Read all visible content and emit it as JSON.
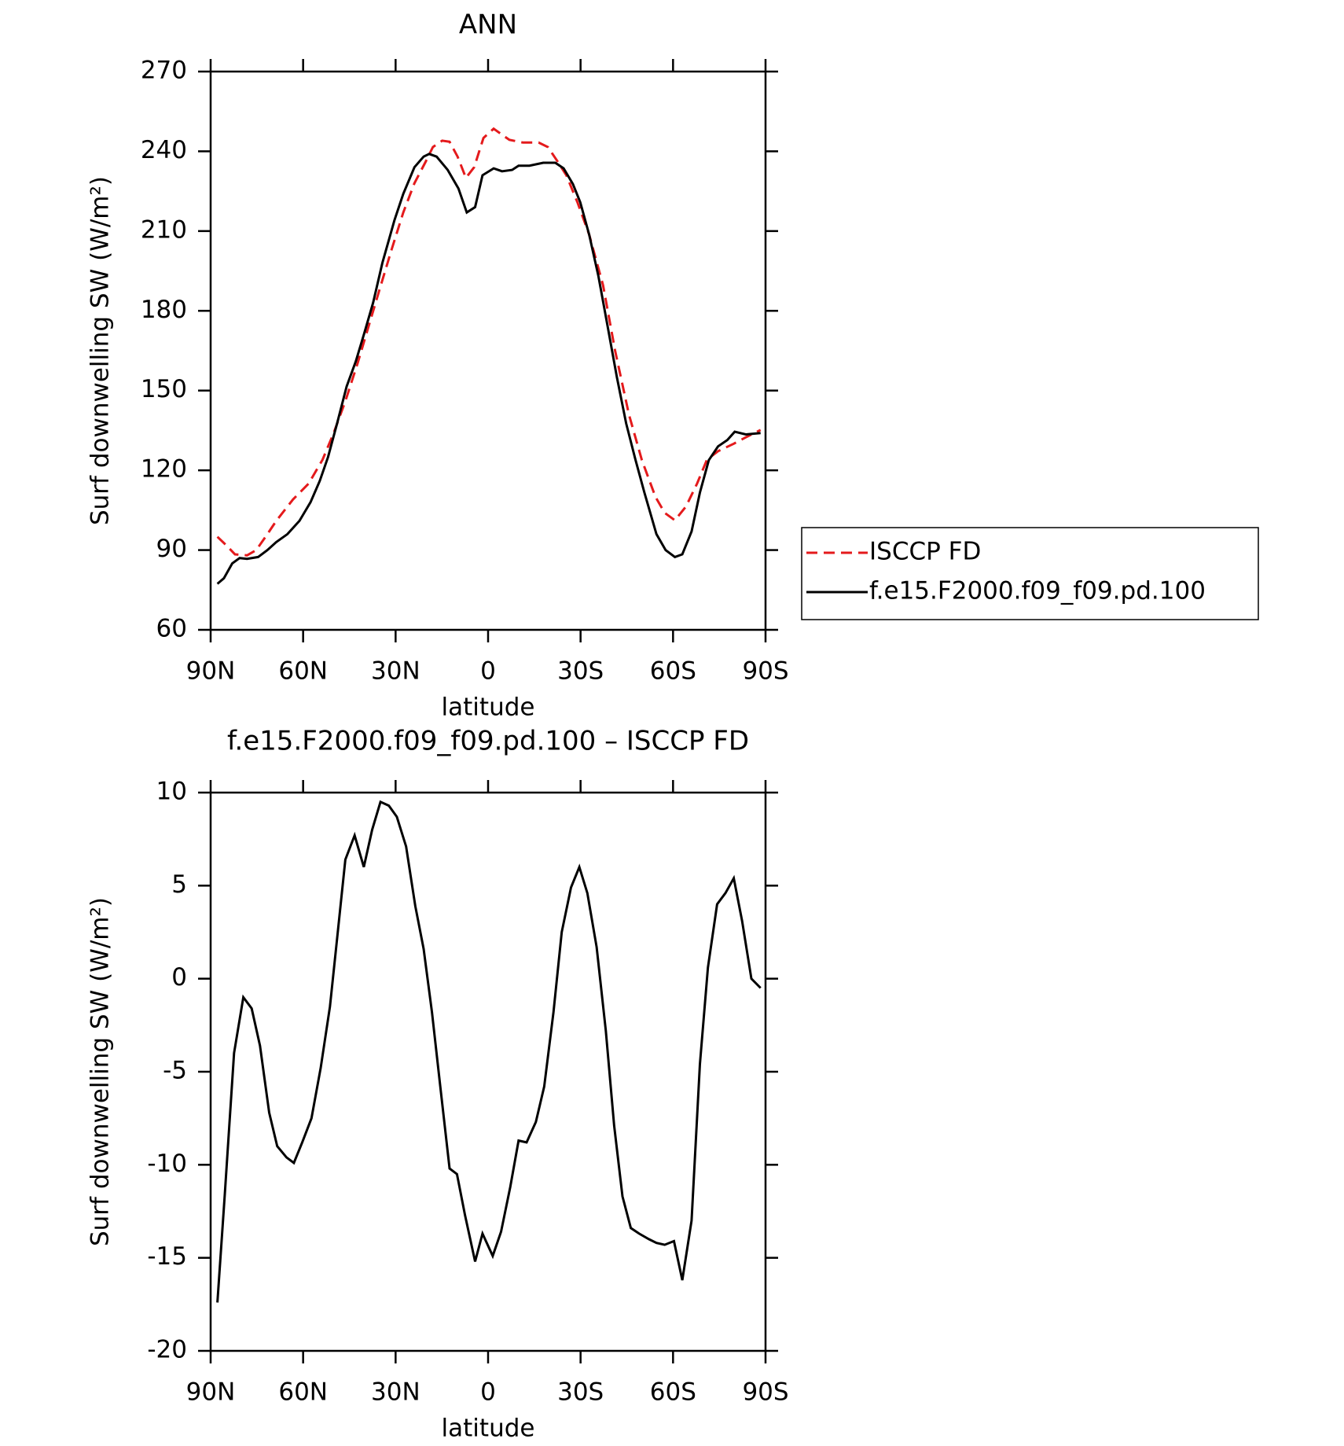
{
  "chart_data": [
    {
      "type": "line",
      "title": "ANN",
      "xlabel": "latitude",
      "ylabel": "Surf downwelling SW (W/m²)",
      "xlim": [
        90,
        -90
      ],
      "xticks": [
        {
          "value": 90,
          "label": "90N"
        },
        {
          "value": 60,
          "label": "60N"
        },
        {
          "value": 30,
          "label": "30N"
        },
        0,
        {
          "value": -30,
          "label": "30S"
        },
        {
          "value": -60,
          "label": "60S"
        },
        {
          "value": -90,
          "label": "90S"
        }
      ],
      "ylim": [
        60,
        270
      ],
      "yticks": [
        60,
        90,
        120,
        150,
        180,
        210,
        240,
        270
      ],
      "legend": "right",
      "series": [
        {
          "name": "ISCCP FD",
          "color": "#e41a1c",
          "dash": true,
          "x": [
            87.8,
            85.1,
            82.1,
            78.2,
            75.2,
            71.6,
            68.7,
            63.3,
            58.2,
            53.7,
            50.1,
            46.3,
            42.4,
            38.8,
            35.2,
            31.3,
            27.5,
            23.9,
            20.3,
            17.9,
            14.9,
            12.5,
            9.9,
            7.2,
            4.5,
            1.5,
            -1.8,
            -6.9,
            -11.3,
            -16.4,
            -19.4,
            -22.4,
            -25.4,
            -29,
            -32.8,
            -37.3,
            -41.2,
            -45.7,
            -49.9,
            -54.3,
            -57.3,
            -60.6,
            -64.2,
            -67.8,
            -71,
            -74.6,
            -79.7,
            -83.6,
            -88.4
          ],
          "values": [
            95,
            92,
            88.4,
            88,
            90,
            96,
            101,
            109,
            115,
            124,
            134,
            146,
            160,
            174,
            188,
            203,
            217,
            228,
            236,
            241.6,
            244,
            243.6,
            238,
            230,
            234,
            245,
            248.5,
            244.3,
            243.3,
            243.3,
            241.6,
            236.4,
            231,
            220.8,
            208.7,
            189.6,
            165,
            141,
            123.8,
            110,
            104,
            101.2,
            106.4,
            115,
            124,
            127.2,
            130,
            132.4,
            135.2
          ]
        },
        {
          "name": "f.e15.F2000.f09_f09.pd.100",
          "color": "#000000",
          "dash": false,
          "x": [
            87.8,
            85.7,
            83,
            80.6,
            78.2,
            74.6,
            71.6,
            68.7,
            65.1,
            61.2,
            57.6,
            54.6,
            51.9,
            48.9,
            45.9,
            42.9,
            40.3,
            37.3,
            34.3,
            30.4,
            27.5,
            23.9,
            20.9,
            19.1,
            16.7,
            13.1,
            9.6,
            6.9,
            4.2,
            1.8,
            -1.8,
            -4.5,
            -7.8,
            -9.9,
            -13.4,
            -17.9,
            -21.8,
            -24.5,
            -27.5,
            -29.9,
            -32.8,
            -35.8,
            -38.8,
            -41.8,
            -44.8,
            -47.8,
            -50.7,
            -54.6,
            -57.6,
            -60.6,
            -63,
            -66,
            -68.7,
            -71.6,
            -74.6,
            -77.6,
            -80,
            -83.6,
            -88.4
          ],
          "values": [
            77.3,
            79.4,
            85,
            87,
            86.7,
            87.4,
            90,
            93,
            96,
            101,
            108,
            116,
            125,
            138,
            151.5,
            161,
            171,
            183,
            198,
            214,
            224,
            234,
            238,
            239,
            238,
            233,
            226,
            217,
            219,
            231,
            233.6,
            232.5,
            233,
            234.6,
            234.6,
            235.7,
            235.7,
            233.6,
            227.7,
            220.8,
            208.7,
            193,
            174,
            155,
            137.6,
            124,
            111.6,
            96,
            90,
            87.4,
            88.4,
            97,
            111.6,
            123.8,
            129,
            131.4,
            134.5,
            133.5,
            134
          ]
        }
      ]
    },
    {
      "type": "line",
      "title": "f.e15.F2000.f09_f09.pd.100 – ISCCP FD",
      "xlabel": "latitude",
      "ylabel": "Surf downwelling SW (W/m²)",
      "xlim": [
        90,
        -90
      ],
      "xticks": [
        {
          "value": 90,
          "label": "90N"
        },
        {
          "value": 60,
          "label": "60N"
        },
        {
          "value": 30,
          "label": "30N"
        },
        0,
        {
          "value": -30,
          "label": "30S"
        },
        {
          "value": -60,
          "label": "60S"
        },
        {
          "value": -90,
          "label": "90S"
        }
      ],
      "ylim": [
        -20,
        10
      ],
      "yticks": [
        -20,
        -15,
        -10,
        -5,
        0,
        5,
        10
      ],
      "series": [
        {
          "color": "#000000",
          "dash": false,
          "x": [
            87.8,
            85.4,
            82.4,
            79.4,
            76.7,
            74,
            71,
            68.4,
            65.4,
            63,
            60.3,
            57.3,
            54.3,
            51.3,
            48.7,
            46.3,
            43.3,
            40.3,
            37.6,
            34.9,
            32.2,
            29.6,
            26.6,
            23.6,
            20.9,
            18.2,
            15.5,
            12.5,
            10.1,
            7.5,
            4.2,
            1.8,
            -1.5,
            -4.2,
            -7.2,
            -9.9,
            -12.5,
            -15.5,
            -18.2,
            -21.2,
            -23.9,
            -26.9,
            -29.6,
            -32.2,
            -35.2,
            -38.2,
            -40.9,
            -43.6,
            -46.3,
            -49,
            -52.2,
            -54.6,
            -57.3,
            -60.3,
            -63,
            -66,
            -68.7,
            -71.3,
            -74.3,
            -77,
            -79.7,
            -82.4,
            -85.4,
            -88.4
          ],
          "values": [
            -17.4,
            -11.6,
            -4,
            -1,
            -1.6,
            -3.6,
            -7.2,
            -9,
            -9.6,
            -9.9,
            -8.8,
            -7.5,
            -4.8,
            -1.5,
            2.6,
            6.4,
            7.7,
            6,
            8,
            9.5,
            9.3,
            8.7,
            7.1,
            3.9,
            1.6,
            -1.8,
            -5.8,
            -10.2,
            -10.5,
            -12.7,
            -15.2,
            -13.7,
            -14.9,
            -13.6,
            -11.2,
            -8.7,
            -8.8,
            -7.7,
            -5.8,
            -1.8,
            2.5,
            4.9,
            6,
            4.6,
            1.7,
            -2.8,
            -7.9,
            -11.7,
            -13.4,
            -13.7,
            -14,
            -14.2,
            -14.3,
            -14.1,
            -16.2,
            -13,
            -4.6,
            0.6,
            4,
            4.6,
            5.4,
            3.1,
            0,
            -0.5
          ]
        }
      ]
    }
  ]
}
